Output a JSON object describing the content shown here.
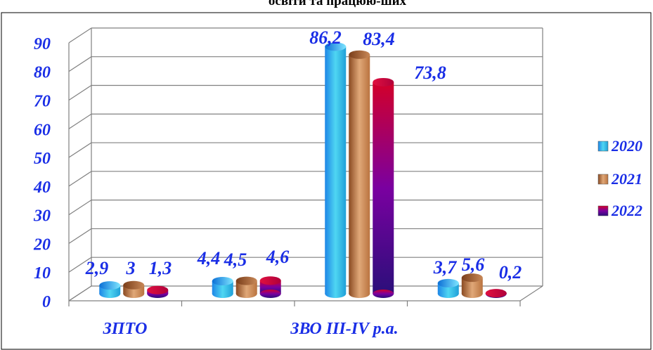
{
  "title": "освіти та працюю-ших",
  "chart_data": {
    "type": "bar",
    "categories": [
      "ЗПТО",
      "",
      "ЗВО III-IV р.а.",
      ""
    ],
    "series": [
      {
        "name": "2020",
        "values": [
          2.9,
          4.4,
          86.2,
          3.7
        ]
      },
      {
        "name": "2021",
        "values": [
          3,
          4.5,
          83.4,
          5.6
        ]
      },
      {
        "name": "2022",
        "values": [
          1.3,
          4.6,
          73.8,
          0.2
        ]
      }
    ],
    "data_labels": [
      [
        "2,9",
        "4,4",
        "86,2",
        "3,7"
      ],
      [
        "3",
        "4,5",
        "83,4",
        "5,6"
      ],
      [
        "1,3",
        "4,6",
        "73,8",
        "0,2"
      ]
    ],
    "y_ticks": [
      "0",
      "10",
      "20",
      "30",
      "40",
      "50",
      "60",
      "70",
      "80",
      "90"
    ],
    "ylim": [
      0,
      100
    ],
    "grid": true,
    "legend_position": "right",
    "colors": {
      "2020": [
        "#1e86e6",
        "#4fd6f2",
        "#1f9fd8"
      ],
      "2021": [
        "#8a4a22",
        "#e0a878",
        "#b9733f"
      ],
      "2022": [
        "#c5002a",
        "#6a00a8",
        "#2b0f7a"
      ],
      "label": "#1a2ee6",
      "grid": "#808080",
      "border": "#000000"
    }
  }
}
